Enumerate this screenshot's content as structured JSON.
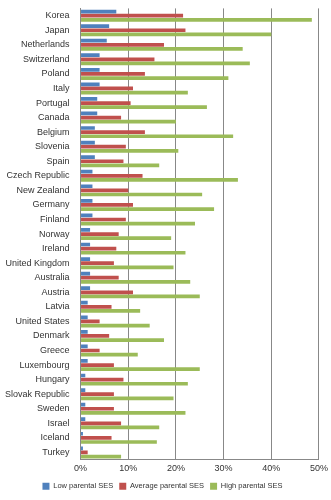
{
  "chart_data": {
    "type": "bar",
    "orientation": "horizontal",
    "categories": [
      "Korea",
      "Japan",
      "Netherlands",
      "Switzerland",
      "Poland",
      "Italy",
      "Portugal",
      "Canada",
      "Belgium",
      "Slovenia",
      "Spain",
      "Czech Republic",
      "New Zealand",
      "Germany",
      "Finland",
      "Norway",
      "Ireland",
      "United Kingdom",
      "Australia",
      "Austria",
      "Latvia",
      "United States",
      "Denmark",
      "Greece",
      "Luxembourg",
      "Hungary",
      "Slovak Republic",
      "Sweden",
      "Israel",
      "Iceland",
      "Turkey"
    ],
    "series": [
      {
        "name": "Low parental SES",
        "color": "#4f81bd",
        "values": [
          7.5,
          6,
          5.5,
          4,
          4,
          4,
          3.5,
          3.5,
          3,
          3,
          3,
          2.5,
          2.5,
          2.5,
          2.5,
          2,
          2,
          2,
          2,
          2,
          1.5,
          1.5,
          1.5,
          1.5,
          1.5,
          1,
          1,
          1,
          1,
          0.5,
          0.5
        ]
      },
      {
        "name": "Average parental SES",
        "color": "#c0504d",
        "values": [
          21.5,
          22,
          17.5,
          15.5,
          13.5,
          11,
          10.5,
          8.5,
          13.5,
          9.5,
          9,
          13,
          10,
          11,
          9.5,
          8,
          7.5,
          7,
          8,
          11,
          6.5,
          4,
          6,
          4,
          7,
          9,
          7,
          7,
          8.5,
          6.5,
          1.5
        ]
      },
      {
        "name": "High parental SES",
        "color": "#9bbb59",
        "values": [
          48.5,
          40,
          34,
          35.5,
          31,
          22.5,
          26.5,
          20,
          32,
          20.5,
          16.5,
          33,
          25.5,
          28,
          24,
          19,
          22,
          19.5,
          23,
          25,
          12.5,
          14.5,
          17.5,
          12,
          25,
          22.5,
          19.5,
          22,
          16.5,
          16,
          8.5
        ]
      }
    ],
    "xlim": [
      0,
      50
    ],
    "xticks": [
      {
        "value": 0,
        "label": "0%"
      },
      {
        "value": 10,
        "label": "10%"
      },
      {
        "value": 20,
        "label": "20%"
      },
      {
        "value": 30,
        "label": "30%"
      },
      {
        "value": 40,
        "label": "40%"
      },
      {
        "value": 50,
        "label": "50%"
      }
    ],
    "grid": true,
    "legend": "bottom"
  }
}
